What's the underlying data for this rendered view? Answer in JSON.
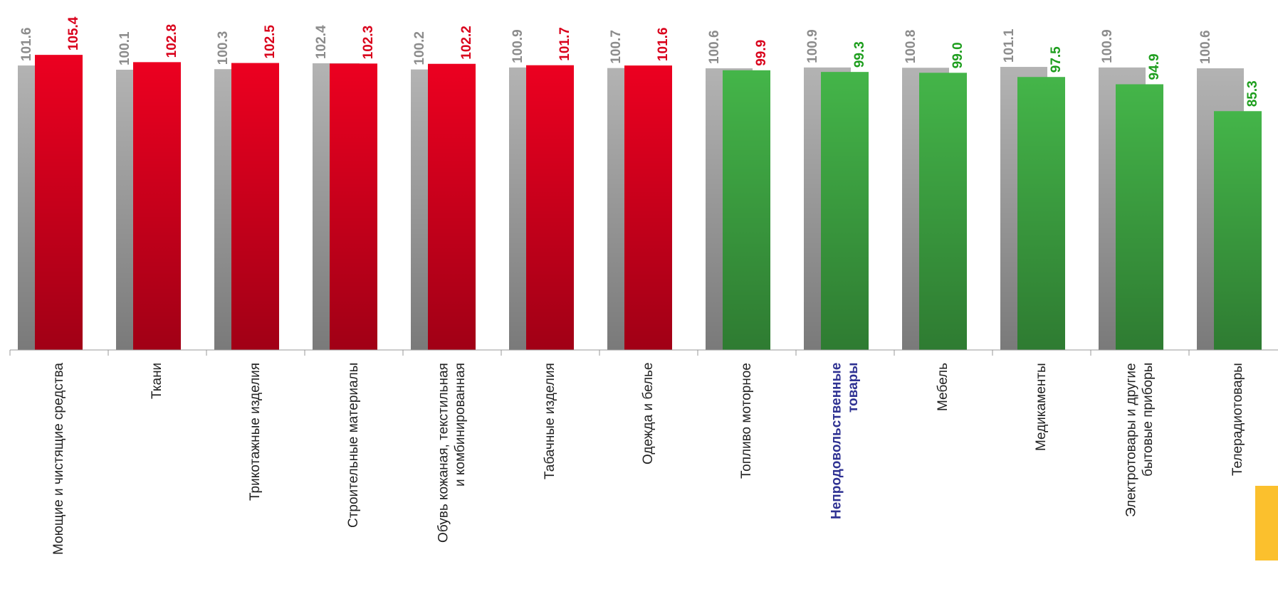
{
  "chart_data": {
    "type": "bar",
    "categories": [
      "Моющие и чистящие средства",
      "Ткани",
      "Трикотажные изделия",
      "Строительные материалы",
      "Обувь кожаная, текстильная\nи комбинированная",
      "Табачные изделия",
      "Одежда и белье",
      "Топливо моторное",
      "Непродовольственные\nтовары",
      "Мебель",
      "Медикаменты",
      "Электротовары и другие\nбытовые приборы",
      "Телерадиотовары"
    ],
    "series": [
      {
        "color": "#b3b3b3",
        "label_color": "#8c8c8c",
        "values": [
          101.6,
          100.1,
          100.3,
          102.4,
          100.2,
          100.9,
          100.7,
          100.6,
          100.9,
          100.8,
          101.1,
          100.9,
          100.6
        ]
      },
      {
        "colors": [
          "#ec0020",
          "#ec0020",
          "#ec0020",
          "#ec0020",
          "#ec0020",
          "#ec0020",
          "#ec0020",
          "#44b549",
          "#44b549",
          "#44b549",
          "#44b549",
          "#44b549",
          "#44b549"
        ],
        "label_colors": [
          "#d9001b",
          "#d9001b",
          "#d9001b",
          "#d9001b",
          "#d9001b",
          "#d9001b",
          "#d9001b",
          "#d9001b",
          "#1e9e1e",
          "#1e9e1e",
          "#1e9e1e",
          "#1e9e1e",
          "#1e9e1e"
        ],
        "values": [
          105.4,
          102.8,
          102.5,
          102.3,
          102.2,
          101.7,
          101.6,
          99.9,
          99.3,
          99.0,
          97.5,
          94.9,
          85.3
        ],
        "value_labels": [
          "105.4",
          "102.8",
          "102.5",
          "102.3",
          "102.2",
          "101.7",
          "101.6",
          "99.9",
          "99.3",
          "99.0",
          "97.5",
          "94.9",
          "85.3"
        ]
      }
    ],
    "ylim": [
      0,
      125
    ],
    "highlight_index": 8,
    "highlight_color": "#2e3192"
  }
}
